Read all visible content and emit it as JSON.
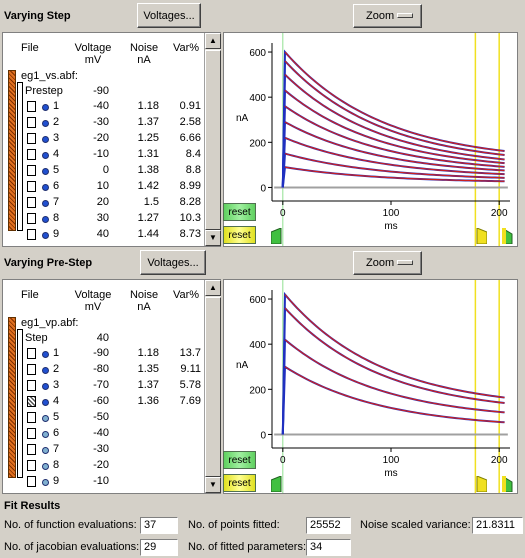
{
  "colors": {
    "bg": "#d4d0c8",
    "fit_red": "#cc2020",
    "trace_blue": "#2030c0",
    "dot_blue": "#2050d0",
    "dot_light": "#80b0d0",
    "cursor_yellow": "#f0e020"
  },
  "sections": [
    {
      "title": "Varying Step",
      "voltages_label": "Voltages...",
      "zoom_label": "Zoom",
      "headers": {
        "file": "File",
        "voltage": "Voltage",
        "voltage_unit": "mV",
        "noise": "Noise",
        "noise_unit": "nA",
        "var": "Var%"
      },
      "file_name": "eg1_vs.abf:",
      "group_label": "Prestep",
      "group_value": "-90",
      "rows": [
        {
          "n": "1",
          "voltage": "-40",
          "noise": "1.18",
          "var": "0.91",
          "checked": false,
          "dot": "blue"
        },
        {
          "n": "2",
          "voltage": "-30",
          "noise": "1.37",
          "var": "2.58",
          "checked": false,
          "dot": "blue"
        },
        {
          "n": "3",
          "voltage": "-20",
          "noise": "1.25",
          "var": "6.66",
          "checked": false,
          "dot": "blue"
        },
        {
          "n": "4",
          "voltage": "-10",
          "noise": "1.31",
          "var": "8.4",
          "checked": false,
          "dot": "blue"
        },
        {
          "n": "5",
          "voltage": "0",
          "noise": "1.38",
          "var": "8.8",
          "checked": false,
          "dot": "blue"
        },
        {
          "n": "6",
          "voltage": "10",
          "noise": "1.42",
          "var": "8.99",
          "checked": false,
          "dot": "blue"
        },
        {
          "n": "7",
          "voltage": "20",
          "noise": "1.5",
          "var": "8.28",
          "checked": false,
          "dot": "blue"
        },
        {
          "n": "8",
          "voltage": "30",
          "noise": "1.27",
          "var": "10.3",
          "checked": false,
          "dot": "blue"
        },
        {
          "n": "9",
          "voltage": "40",
          "noise": "1.44",
          "var": "8.73",
          "checked": false,
          "dot": "blue"
        }
      ],
      "reset_label": "reset",
      "chart": {
        "ylabel": "nA",
        "xlabel": "ms",
        "yticks": [
          "0",
          "200",
          "400",
          "600"
        ],
        "xticks": [
          "0",
          "100",
          "200"
        ],
        "xlim": [
          -10,
          210
        ],
        "ylim": [
          -60,
          640
        ],
        "peaks": [
          600,
          560,
          500,
          430,
          360,
          290,
          220,
          150,
          90
        ],
        "ends": [
          110,
          95,
          80,
          70,
          60,
          50,
          40,
          30,
          20
        ],
        "cursors": [
          178,
          200
        ]
      }
    },
    {
      "title": "Varying Pre-Step",
      "voltages_label": "Voltages...",
      "zoom_label": "Zoom",
      "headers": {
        "file": "File",
        "voltage": "Voltage",
        "voltage_unit": "mV",
        "noise": "Noise",
        "noise_unit": "nA",
        "var": "Var%"
      },
      "file_name": "eg1_vp.abf:",
      "group_label": "Step",
      "group_value": "40",
      "rows": [
        {
          "n": "1",
          "voltage": "-90",
          "noise": "1.18",
          "var": "13.7",
          "checked": false,
          "dot": "blue"
        },
        {
          "n": "2",
          "voltage": "-80",
          "noise": "1.35",
          "var": "9.11",
          "checked": false,
          "dot": "blue"
        },
        {
          "n": "3",
          "voltage": "-70",
          "noise": "1.37",
          "var": "5.78",
          "checked": false,
          "dot": "blue"
        },
        {
          "n": "4",
          "voltage": "-60",
          "noise": "1.36",
          "var": "7.69",
          "checked": true,
          "dot": "blue"
        },
        {
          "n": "5",
          "voltage": "-50",
          "noise": "",
          "var": "",
          "checked": false,
          "dot": "light"
        },
        {
          "n": "6",
          "voltage": "-40",
          "noise": "",
          "var": "",
          "checked": false,
          "dot": "light"
        },
        {
          "n": "7",
          "voltage": "-30",
          "noise": "",
          "var": "",
          "checked": false,
          "dot": "light"
        },
        {
          "n": "8",
          "voltage": "-20",
          "noise": "",
          "var": "",
          "checked": false,
          "dot": "light"
        },
        {
          "n": "9",
          "voltage": "-10",
          "noise": "",
          "var": "",
          "checked": false,
          "dot": "light"
        }
      ],
      "reset_label": "reset",
      "chart": {
        "ylabel": "nA",
        "xlabel": "ms",
        "yticks": [
          "0",
          "200",
          "400",
          "600"
        ],
        "xticks": [
          "0",
          "100",
          "200"
        ],
        "xlim": [
          -10,
          210
        ],
        "ylim": [
          -60,
          640
        ],
        "peaks": [
          620,
          560,
          420,
          300
        ],
        "ends": [
          110,
          90,
          60,
          25
        ],
        "cursors": [
          178,
          200
        ]
      }
    }
  ],
  "fit": {
    "title": "Fit Results",
    "func_evals_label": "No. of function evaluations:",
    "func_evals": "37",
    "jac_evals_label": "No. of jacobian evaluations:",
    "jac_evals": "29",
    "points_label": "No. of points fitted:",
    "points": "25552",
    "params_label": "No. of fitted parameters:",
    "params": "34",
    "nsv_label": "Noise scaled variance:",
    "nsv": "21.8311"
  }
}
